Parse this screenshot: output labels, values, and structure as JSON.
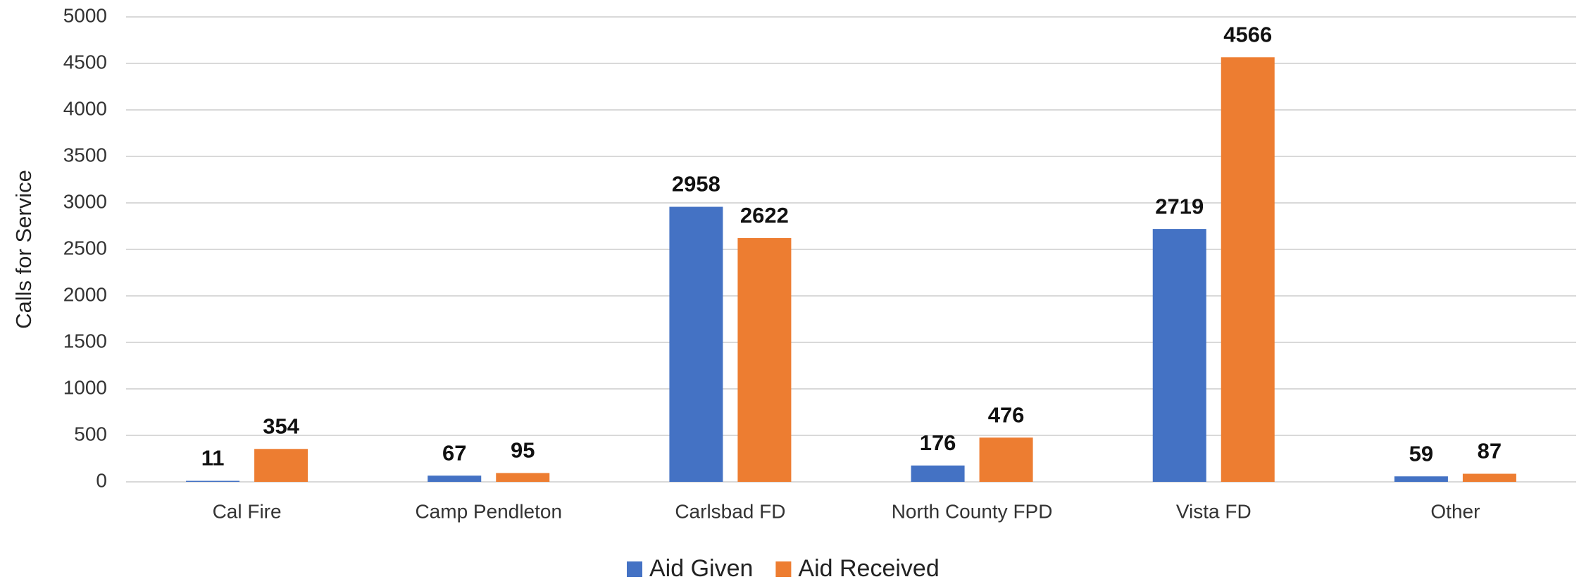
{
  "chart_data": {
    "type": "bar",
    "y_label": "Calls for Service",
    "categories": [
      "Cal Fire",
      "Camp Pendleton",
      "Carlsbad FD",
      "North County FPD",
      "Vista FD",
      "Other"
    ],
    "series": [
      {
        "name": "Aid Given",
        "color": "#4472c4",
        "values": [
          11,
          67,
          2958,
          176,
          2719,
          59
        ]
      },
      {
        "name": "Aid Received",
        "color": "#ed7d31",
        "values": [
          354,
          95,
          2622,
          476,
          4566,
          87
        ]
      }
    ],
    "ylim": [
      0,
      5000
    ],
    "yticks": [
      0,
      500,
      1000,
      1500,
      2000,
      2500,
      3000,
      3500,
      4000,
      4500,
      5000
    ],
    "grid": true,
    "legend": "bottom"
  }
}
